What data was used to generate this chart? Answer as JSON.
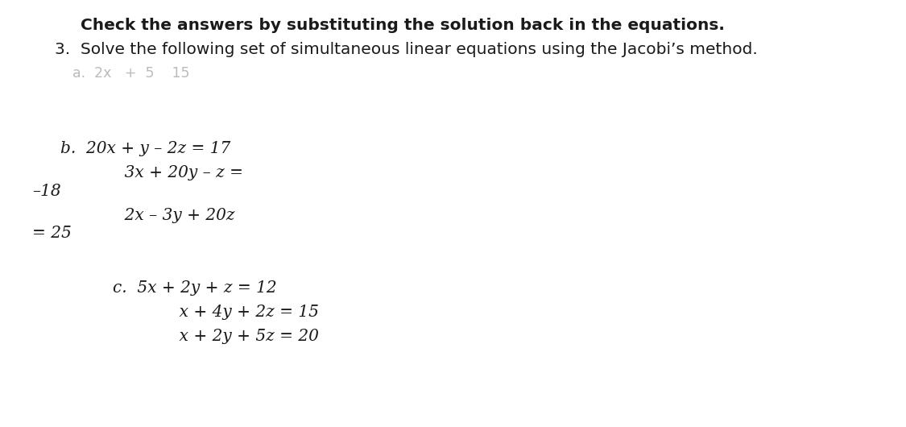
{
  "background_color": "#ffffff",
  "text_color": "#1a1a1a",
  "faded_color": "#bbbbbb",
  "title": "Check the answers by substituting the solution back in the equations.",
  "line2": "3.  Solve the following set of simultaneous linear equations using the Jacobi’s method.",
  "line_a_faded": "a.  2x   +  5    15",
  "b1": "b.  20x + y – 2z = 17",
  "b2": "       3x + 20y – z =",
  "b3": "–18",
  "b4": "       2x – 3y + 20z",
  "b5": "= 25",
  "c1": "c.  5x + 2y + z = 12",
  "c2": "       x + 4y + 2z = 15",
  "c3": "       x + 2y + 5z = 20",
  "font_size_title": 14.5,
  "font_size_body": 14.5,
  "font_size_faded": 12.5
}
